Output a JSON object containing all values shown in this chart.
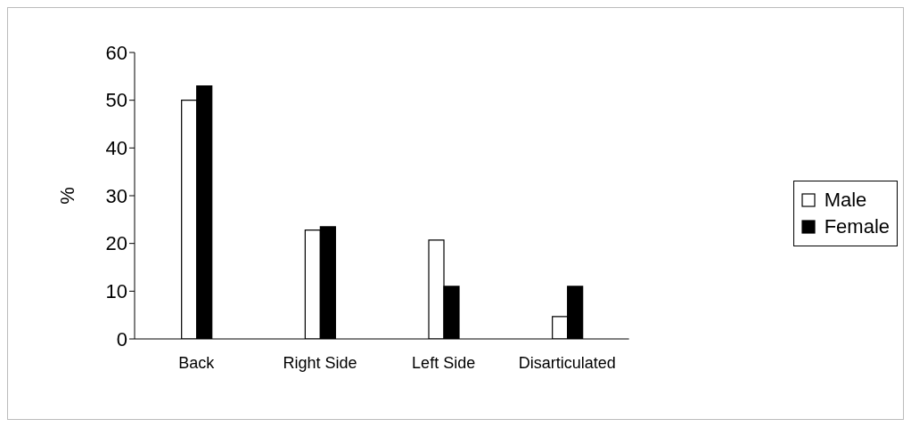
{
  "chart_data": {
    "type": "bar",
    "ylabel": "%",
    "categories": [
      "Back",
      "Right Side",
      "Left Side",
      "Disarticulated"
    ],
    "series": [
      {
        "name": "Male",
        "color": "#ffffff",
        "values": [
          50,
          22.8,
          20.7,
          4.7
        ]
      },
      {
        "name": "Female",
        "color": "#000000",
        "values": [
          53,
          23.5,
          11,
          11
        ]
      }
    ],
    "ylim": [
      0,
      60
    ],
    "yticks": [
      0,
      10,
      20,
      30,
      40,
      50,
      60
    ],
    "grid": false,
    "legend": "right"
  }
}
